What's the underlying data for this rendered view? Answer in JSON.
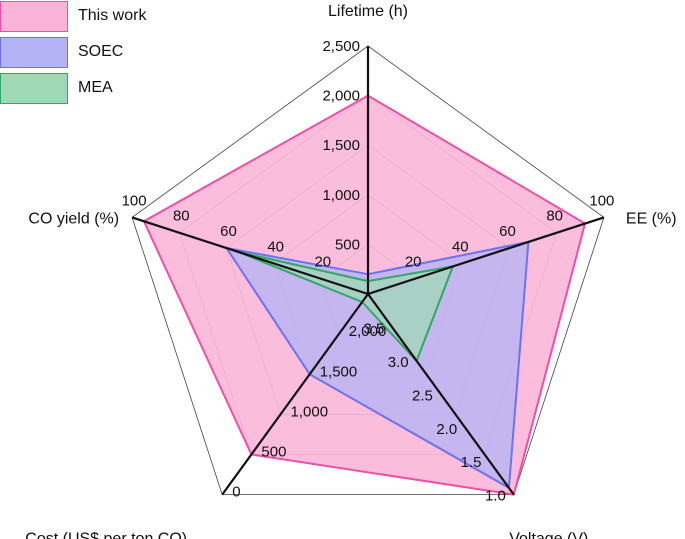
{
  "chart_data": {
    "type": "radar",
    "axes": [
      {
        "label": "Lifetime (h)",
        "min": 0,
        "max": 2500,
        "ticks": [
          "500",
          "1,000",
          "1,500",
          "2,000",
          "2,500"
        ],
        "reversed": false
      },
      {
        "label": "EE (%)",
        "min": 0,
        "max": 100,
        "ticks": [
          "20",
          "40",
          "60",
          "80",
          "100"
        ],
        "reversed": false
      },
      {
        "label": "Voltage (V)",
        "min": 1.0,
        "max": 4.0,
        "ticks": [
          "3.5",
          "3.0",
          "2.5",
          "2.0",
          "1.5",
          "1.0"
        ],
        "tick_values": [
          3.5,
          3.0,
          2.5,
          2.0,
          1.5,
          1.0
        ],
        "reversed": true
      },
      {
        "label": "Cost (US$ per ton CO)",
        "min": 0,
        "max": 2500,
        "ticks": [
          "2,000",
          "1,500",
          "1,000",
          "500",
          "0"
        ],
        "tick_values": [
          2000,
          1500,
          1000,
          500,
          0
        ],
        "reversed": true
      },
      {
        "label": "CO yield (%)",
        "min": 0,
        "max": 100,
        "ticks": [
          "20",
          "40",
          "60",
          "80",
          "100"
        ],
        "reversed": false
      }
    ],
    "series": [
      {
        "name": "This work",
        "color": "#f14fa5",
        "fill": "#f9b3d6",
        "values": [
          2000,
          92,
          1.0,
          500,
          95
        ]
      },
      {
        "name": "SOEC",
        "color": "#6b73f0",
        "fill": "#b3b3f5",
        "values": [
          200,
          68,
          1.1,
          1500,
          60
        ]
      },
      {
        "name": "MEA",
        "color": "#2fa868",
        "fill": "#9fd8b5",
        "values": [
          130,
          36,
          3.0,
          2400,
          55
        ]
      }
    ],
    "legend_position": "top-left",
    "grid": true
  }
}
